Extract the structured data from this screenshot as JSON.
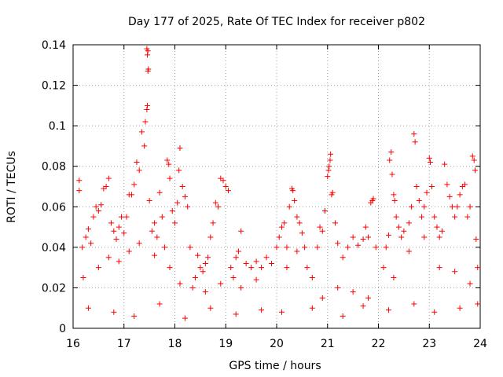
{
  "chart_data": {
    "type": "scatter",
    "title": "Day 177 of 2025, Rate Of TEC Index for receiver p802",
    "xlabel": "GPS time / hours",
    "ylabel": "ROTI / TECUs",
    "xlim": [
      16,
      24
    ],
    "ylim": [
      0,
      0.14
    ],
    "x_ticks": [
      16,
      17,
      18,
      19,
      20,
      21,
      22,
      23,
      24
    ],
    "x_tick_labels": [
      "16",
      "17",
      "18",
      "19",
      "20",
      "21",
      "22",
      "23",
      "24"
    ],
    "y_ticks": [
      0,
      0.02,
      0.04,
      0.06,
      0.08,
      0.1,
      0.12,
      0.14
    ],
    "y_tick_labels": [
      "0",
      "0.02",
      "0.04",
      "0.06",
      "0.08",
      "0.1",
      "0.12",
      "0.14"
    ],
    "grid": true,
    "marker": "+",
    "color": "#ff0000",
    "series": [
      {
        "name": "ROTI",
        "points": [
          [
            16.12,
            0.073
          ],
          [
            16.12,
            0.068
          ],
          [
            16.18,
            0.04
          ],
          [
            16.2,
            0.025
          ],
          [
            16.25,
            0.045
          ],
          [
            16.3,
            0.049
          ],
          [
            16.35,
            0.042
          ],
          [
            16.4,
            0.055
          ],
          [
            16.45,
            0.06
          ],
          [
            16.5,
            0.058
          ],
          [
            16.55,
            0.061
          ],
          [
            16.6,
            0.069
          ],
          [
            16.65,
            0.07
          ],
          [
            16.7,
            0.074
          ],
          [
            16.75,
            0.052
          ],
          [
            16.8,
            0.048
          ],
          [
            16.85,
            0.044
          ],
          [
            16.9,
            0.05
          ],
          [
            16.95,
            0.055
          ],
          [
            17.0,
            0.047
          ],
          [
            17.05,
            0.055
          ],
          [
            17.1,
            0.066
          ],
          [
            17.15,
            0.066
          ],
          [
            17.2,
            0.071
          ],
          [
            17.25,
            0.082
          ],
          [
            17.3,
            0.078
          ],
          [
            17.35,
            0.097
          ],
          [
            17.4,
            0.09
          ],
          [
            17.42,
            0.102
          ],
          [
            17.45,
            0.108
          ],
          [
            17.46,
            0.11
          ],
          [
            17.47,
            0.127
          ],
          [
            17.48,
            0.128
          ],
          [
            17.46,
            0.135
          ],
          [
            17.47,
            0.137
          ],
          [
            17.45,
            0.138
          ],
          [
            17.5,
            0.063
          ],
          [
            17.55,
            0.048
          ],
          [
            17.6,
            0.052
          ],
          [
            17.65,
            0.045
          ],
          [
            17.7,
            0.067
          ],
          [
            17.75,
            0.055
          ],
          [
            17.8,
            0.04
          ],
          [
            17.85,
            0.083
          ],
          [
            17.88,
            0.081
          ],
          [
            17.9,
            0.074
          ],
          [
            17.95,
            0.058
          ],
          [
            18.0,
            0.052
          ],
          [
            18.05,
            0.062
          ],
          [
            18.08,
            0.078
          ],
          [
            18.1,
            0.089
          ],
          [
            18.15,
            0.07
          ],
          [
            18.2,
            0.065
          ],
          [
            18.25,
            0.06
          ],
          [
            18.3,
            0.04
          ],
          [
            18.35,
            0.02
          ],
          [
            18.4,
            0.025
          ],
          [
            18.45,
            0.036
          ],
          [
            18.5,
            0.03
          ],
          [
            18.55,
            0.028
          ],
          [
            18.6,
            0.032
          ],
          [
            18.65,
            0.035
          ],
          [
            18.7,
            0.045
          ],
          [
            18.75,
            0.052
          ],
          [
            18.8,
            0.062
          ],
          [
            18.85,
            0.06
          ],
          [
            18.9,
            0.074
          ],
          [
            18.95,
            0.073
          ],
          [
            19.0,
            0.07
          ],
          [
            19.05,
            0.068
          ],
          [
            19.1,
            0.03
          ],
          [
            19.15,
            0.025
          ],
          [
            19.2,
            0.035
          ],
          [
            19.25,
            0.038
          ],
          [
            19.3,
            0.048
          ],
          [
            19.4,
            0.032
          ],
          [
            19.5,
            0.03
          ],
          [
            19.6,
            0.033
          ],
          [
            19.7,
            0.03
          ],
          [
            19.8,
            0.035
          ],
          [
            19.9,
            0.032
          ],
          [
            20.0,
            0.04
          ],
          [
            20.05,
            0.045
          ],
          [
            20.1,
            0.05
          ],
          [
            20.15,
            0.052
          ],
          [
            20.2,
            0.04
          ],
          [
            20.25,
            0.06
          ],
          [
            20.3,
            0.069
          ],
          [
            20.32,
            0.068
          ],
          [
            20.35,
            0.063
          ],
          [
            20.4,
            0.055
          ],
          [
            20.45,
            0.052
          ],
          [
            20.5,
            0.047
          ],
          [
            20.55,
            0.04
          ],
          [
            20.6,
            0.03
          ],
          [
            20.7,
            0.025
          ],
          [
            20.8,
            0.04
          ],
          [
            20.85,
            0.05
          ],
          [
            20.9,
            0.048
          ],
          [
            20.95,
            0.058
          ],
          [
            21.0,
            0.075
          ],
          [
            21.02,
            0.078
          ],
          [
            21.03,
            0.08
          ],
          [
            21.05,
            0.083
          ],
          [
            21.06,
            0.086
          ],
          [
            21.08,
            0.066
          ],
          [
            21.1,
            0.067
          ],
          [
            21.15,
            0.052
          ],
          [
            21.2,
            0.042
          ],
          [
            21.3,
            0.035
          ],
          [
            21.4,
            0.04
          ],
          [
            21.5,
            0.045
          ],
          [
            21.6,
            0.041
          ],
          [
            21.7,
            0.044
          ],
          [
            21.75,
            0.05
          ],
          [
            21.8,
            0.045
          ],
          [
            21.85,
            0.062
          ],
          [
            21.88,
            0.063
          ],
          [
            21.9,
            0.064
          ],
          [
            21.95,
            0.04
          ],
          [
            22.1,
            0.03
          ],
          [
            22.15,
            0.04
          ],
          [
            22.2,
            0.046
          ],
          [
            22.22,
            0.083
          ],
          [
            22.25,
            0.087
          ],
          [
            22.27,
            0.076
          ],
          [
            22.3,
            0.066
          ],
          [
            22.32,
            0.063
          ],
          [
            22.35,
            0.055
          ],
          [
            22.4,
            0.05
          ],
          [
            22.45,
            0.045
          ],
          [
            22.5,
            0.048
          ],
          [
            22.6,
            0.052
          ],
          [
            22.65,
            0.06
          ],
          [
            22.7,
            0.096
          ],
          [
            22.72,
            0.092
          ],
          [
            22.75,
            0.07
          ],
          [
            22.8,
            0.063
          ],
          [
            22.85,
            0.055
          ],
          [
            22.9,
            0.06
          ],
          [
            22.95,
            0.067
          ],
          [
            23.0,
            0.084
          ],
          [
            23.02,
            0.082
          ],
          [
            23.05,
            0.07
          ],
          [
            23.1,
            0.055
          ],
          [
            23.15,
            0.05
          ],
          [
            23.2,
            0.045
          ],
          [
            23.25,
            0.048
          ],
          [
            23.3,
            0.081
          ],
          [
            23.35,
            0.071
          ],
          [
            23.4,
            0.065
          ],
          [
            23.45,
            0.06
          ],
          [
            23.5,
            0.055
          ],
          [
            23.55,
            0.06
          ],
          [
            23.6,
            0.066
          ],
          [
            23.65,
            0.07
          ],
          [
            23.7,
            0.071
          ],
          [
            23.75,
            0.055
          ],
          [
            23.8,
            0.06
          ],
          [
            23.85,
            0.085
          ],
          [
            23.88,
            0.083
          ],
          [
            23.9,
            0.078
          ],
          [
            23.92,
            0.044
          ],
          [
            23.95,
            0.03
          ],
          [
            16.5,
            0.03
          ],
          [
            16.7,
            0.035
          ],
          [
            16.9,
            0.033
          ],
          [
            17.1,
            0.038
          ],
          [
            17.3,
            0.042
          ],
          [
            17.6,
            0.036
          ],
          [
            17.9,
            0.03
          ],
          [
            18.1,
            0.022
          ],
          [
            18.6,
            0.018
          ],
          [
            18.9,
            0.022
          ],
          [
            19.3,
            0.02
          ],
          [
            19.6,
            0.024
          ],
          [
            20.2,
            0.03
          ],
          [
            20.4,
            0.038
          ],
          [
            20.9,
            0.015
          ],
          [
            21.2,
            0.02
          ],
          [
            21.5,
            0.018
          ],
          [
            21.8,
            0.015
          ],
          [
            22.3,
            0.025
          ],
          [
            22.6,
            0.038
          ],
          [
            22.9,
            0.045
          ],
          [
            23.2,
            0.03
          ],
          [
            23.5,
            0.028
          ],
          [
            23.8,
            0.022
          ],
          [
            16.3,
            0.01
          ],
          [
            16.8,
            0.008
          ],
          [
            17.2,
            0.006
          ],
          [
            17.7,
            0.012
          ],
          [
            18.2,
            0.005
          ],
          [
            18.7,
            0.01
          ],
          [
            19.2,
            0.007
          ],
          [
            19.7,
            0.009
          ],
          [
            20.1,
            0.008
          ],
          [
            20.7,
            0.01
          ],
          [
            21.3,
            0.006
          ],
          [
            21.7,
            0.011
          ],
          [
            22.2,
            0.009
          ],
          [
            22.7,
            0.012
          ],
          [
            23.1,
            0.008
          ],
          [
            23.6,
            0.01
          ],
          [
            23.95,
            0.012
          ]
        ]
      }
    ]
  }
}
